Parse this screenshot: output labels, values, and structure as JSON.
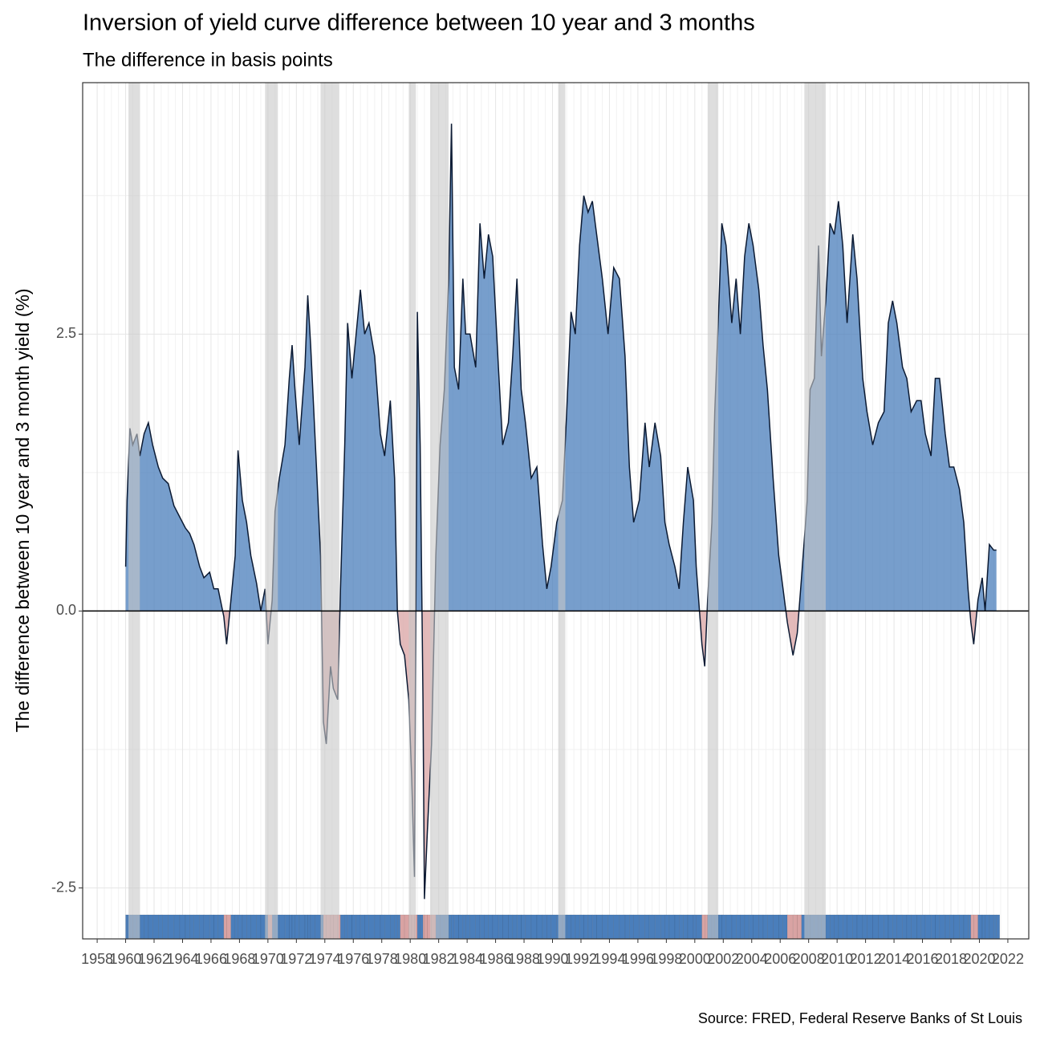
{
  "chart_data": {
    "type": "area",
    "title": "Inversion of yield curve difference between 10 year and 3 months",
    "subtitle": "The difference in basis points",
    "y_label": "The difference between 10 year and 3 month yield (%)",
    "caption": "Source: FRED, Federal Reserve Banks of St Louis",
    "x": [
      1960.0,
      1960.1,
      1960.3,
      1960.5,
      1960.8,
      1961.0,
      1961.3,
      1961.6,
      1961.9,
      1962.3,
      1962.6,
      1963.0,
      1963.4,
      1963.8,
      1964.2,
      1964.5,
      1964.8,
      1965.2,
      1965.5,
      1965.9,
      1966.2,
      1966.5,
      1966.9,
      1967.1,
      1967.4,
      1967.7,
      1967.9,
      1968.2,
      1968.5,
      1968.8,
      1969.2,
      1969.5,
      1969.8,
      1970.0,
      1970.3,
      1970.5,
      1970.8,
      1971.2,
      1971.5,
      1971.7,
      1971.9,
      1972.2,
      1972.6,
      1972.8,
      1973.0,
      1973.3,
      1973.7,
      1973.9,
      1974.1,
      1974.4,
      1974.6,
      1974.9,
      1975.1,
      1975.4,
      1975.6,
      1975.9,
      1976.2,
      1976.5,
      1976.8,
      1977.1,
      1977.5,
      1977.9,
      1978.2,
      1978.6,
      1978.9,
      1979.1,
      1979.3,
      1979.6,
      1979.9,
      1980.1,
      1980.3,
      1980.5,
      1980.7,
      1980.9,
      1981.0,
      1981.2,
      1981.5,
      1981.8,
      1982.1,
      1982.4,
      1982.7,
      1982.9,
      1983.1,
      1983.4,
      1983.7,
      1983.9,
      1984.2,
      1984.6,
      1984.9,
      1985.2,
      1985.5,
      1985.8,
      1986.2,
      1986.5,
      1986.9,
      1987.2,
      1987.5,
      1987.8,
      1988.1,
      1988.5,
      1988.9,
      1989.3,
      1989.6,
      1989.9,
      1990.3,
      1990.7,
      1991.0,
      1991.3,
      1991.6,
      1991.9,
      1992.2,
      1992.5,
      1992.8,
      1993.1,
      1993.5,
      1993.9,
      1994.3,
      1994.7,
      1995.1,
      1995.4,
      1995.7,
      1996.1,
      1996.5,
      1996.8,
      1997.2,
      1997.6,
      1997.9,
      1998.2,
      1998.6,
      1998.9,
      1999.2,
      1999.5,
      1999.9,
      2000.1,
      2000.5,
      2000.7,
      2000.9,
      2001.2,
      2001.4,
      2001.7,
      2001.9,
      2002.2,
      2002.6,
      2002.9,
      2003.2,
      2003.5,
      2003.8,
      2004.1,
      2004.5,
      2004.8,
      2005.1,
      2005.5,
      2005.9,
      2006.2,
      2006.5,
      2006.9,
      2007.2,
      2007.5,
      2007.9,
      2008.1,
      2008.4,
      2008.7,
      2008.9,
      2009.2,
      2009.5,
      2009.8,
      2010.1,
      2010.4,
      2010.7,
      2011.1,
      2011.4,
      2011.8,
      2012.1,
      2012.5,
      2012.9,
      2013.3,
      2013.6,
      2013.9,
      2014.2,
      2014.6,
      2014.9,
      2015.2,
      2015.6,
      2015.9,
      2016.2,
      2016.6,
      2016.9,
      2017.2,
      2017.6,
      2017.9,
      2018.2,
      2018.6,
      2018.9,
      2019.2,
      2019.4,
      2019.6,
      2019.9,
      2020.2,
      2020.4,
      2020.7,
      2021.0,
      2021.2
    ],
    "values": [
      0.4,
      1.0,
      1.65,
      1.5,
      1.6,
      1.4,
      1.6,
      1.7,
      1.5,
      1.3,
      1.2,
      1.15,
      0.95,
      0.85,
      0.75,
      0.7,
      0.6,
      0.4,
      0.3,
      0.35,
      0.2,
      0.2,
      -0.05,
      -0.3,
      0.1,
      0.5,
      1.45,
      1.0,
      0.8,
      0.5,
      0.25,
      0.0,
      0.2,
      -0.3,
      0.1,
      0.9,
      1.2,
      1.5,
      2.1,
      2.4,
      2.0,
      1.5,
      2.2,
      2.85,
      2.4,
      1.6,
      0.5,
      -1.0,
      -1.2,
      -0.5,
      -0.7,
      -0.8,
      0.2,
      1.5,
      2.6,
      2.1,
      2.5,
      2.9,
      2.5,
      2.6,
      2.3,
      1.6,
      1.4,
      1.9,
      1.2,
      0.0,
      -0.3,
      -0.4,
      -0.8,
      -1.5,
      -2.4,
      2.7,
      1.5,
      -0.8,
      -2.6,
      -2.0,
      -1.2,
      0.5,
      1.5,
      2.0,
      3.0,
      4.4,
      2.2,
      2.0,
      3.0,
      2.5,
      2.5,
      2.2,
      3.5,
      3.0,
      3.4,
      3.2,
      2.2,
      1.5,
      1.7,
      2.3,
      3.0,
      2.0,
      1.7,
      1.2,
      1.3,
      0.6,
      0.2,
      0.4,
      0.8,
      1.0,
      1.8,
      2.7,
      2.5,
      3.3,
      3.75,
      3.6,
      3.7,
      3.4,
      3.0,
      2.5,
      3.1,
      3.0,
      2.3,
      1.3,
      0.8,
      1.0,
      1.7,
      1.3,
      1.7,
      1.4,
      0.8,
      0.6,
      0.4,
      0.2,
      0.8,
      1.3,
      1.0,
      0.4,
      -0.3,
      -0.5,
      0.1,
      0.8,
      1.8,
      2.8,
      3.5,
      3.3,
      2.6,
      3.0,
      2.5,
      3.2,
      3.5,
      3.3,
      2.9,
      2.4,
      2.0,
      1.2,
      0.5,
      0.2,
      -0.1,
      -0.4,
      -0.2,
      0.3,
      1.0,
      2.0,
      2.1,
      3.3,
      2.3,
      2.8,
      3.5,
      3.4,
      3.7,
      3.3,
      2.6,
      3.4,
      3.0,
      2.1,
      1.8,
      1.5,
      1.7,
      1.8,
      2.6,
      2.8,
      2.6,
      2.2,
      2.1,
      1.8,
      1.9,
      1.9,
      1.6,
      1.4,
      2.1,
      2.1,
      1.6,
      1.3,
      1.3,
      1.1,
      0.8,
      0.2,
      -0.1,
      -0.3,
      0.1,
      0.3,
      0.0,
      0.6,
      0.55,
      0.55
    ],
    "recessions": [
      [
        1960.2,
        1961.0
      ],
      [
        1969.8,
        1970.7
      ],
      [
        1973.7,
        1975.0
      ],
      [
        1979.9,
        1980.4
      ],
      [
        1981.4,
        1982.7
      ],
      [
        1990.4,
        1990.9
      ],
      [
        2000.9,
        2001.65
      ],
      [
        2007.7,
        2009.2
      ]
    ],
    "positive_color": "#4a7ebb",
    "negative_color": "#d9a3a3",
    "recession_color": "#c8c8c8",
    "xlim": [
      1956.98,
      2023.47
    ],
    "ylim": [
      -2.96,
      4.77
    ],
    "xticks": [
      1958,
      1960,
      1962,
      1964,
      1966,
      1968,
      1970,
      1972,
      1974,
      1976,
      1978,
      1980,
      1982,
      1984,
      1986,
      1988,
      1990,
      1992,
      1994,
      1996,
      1998,
      2000,
      2002,
      2004,
      2006,
      2008,
      2010,
      2012,
      2014,
      2016,
      2018,
      2020,
      2022
    ],
    "yticks": [
      -2.5,
      {
        "value": 0,
        "label": "0.0"
      },
      2.5
    ],
    "grid": true
  }
}
